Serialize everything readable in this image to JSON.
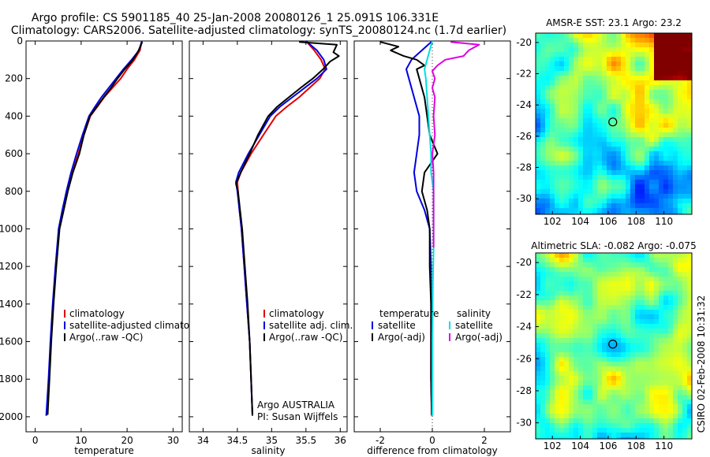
{
  "header": {
    "line1": "Argo profile: CS 5901185_40 25-Jan-2008 20080126_1 25.091S 106.331E",
    "line2": "Climatology: CARS2006. Satellite-adjusted climatology: synTS_20080124.nc (1.7d earlier)"
  },
  "side_text": "CSIRO 02-Feb-2008 10:31:32",
  "colors": {
    "climatology": "#e00000",
    "satellite": "#0000e0",
    "argo": "#000000",
    "salinity_sat": "#00e0e0",
    "salinity_argo": "#e000e0"
  },
  "chart_data": [
    {
      "type": "line",
      "id": "temperature",
      "xlabel": "temperature",
      "xlim": [
        -2,
        32
      ],
      "ylim": [
        2080,
        0
      ],
      "xticks": [
        "0",
        "10",
        "20",
        "30"
      ],
      "yticks": [
        "0",
        "200",
        "400",
        "600",
        "800",
        "1000",
        "1200",
        "1400",
        "1600",
        "1800",
        "2000"
      ],
      "legend": [
        "climatology",
        "satellite-adjusted climatology",
        "Argo(..raw -QC)"
      ],
      "series": [
        {
          "name": "climatology",
          "color": "#e00000",
          "points": [
            [
              23.2,
              0
            ],
            [
              22.8,
              50
            ],
            [
              21.6,
              100
            ],
            [
              20.0,
              150
            ],
            [
              18.6,
              200
            ],
            [
              16.8,
              250
            ],
            [
              15.0,
              300
            ],
            [
              13.5,
              350
            ],
            [
              12.0,
              400
            ],
            [
              10.6,
              500
            ],
            [
              9.4,
              600
            ],
            [
              8.1,
              700
            ],
            [
              7.0,
              800
            ],
            [
              6.0,
              900
            ],
            [
              5.2,
              1000
            ],
            [
              4.5,
              1200
            ],
            [
              3.9,
              1400
            ],
            [
              3.4,
              1600
            ],
            [
              3.0,
              1800
            ],
            [
              2.6,
              1990
            ]
          ]
        },
        {
          "name": "satellite-adjusted climatology",
          "color": "#0000e0",
          "points": [
            [
              23.2,
              0
            ],
            [
              22.6,
              50
            ],
            [
              21.0,
              100
            ],
            [
              19.2,
              150
            ],
            [
              17.6,
              200
            ],
            [
              16.0,
              250
            ],
            [
              14.4,
              300
            ],
            [
              13.0,
              350
            ],
            [
              11.7,
              400
            ],
            [
              10.3,
              500
            ],
            [
              9.0,
              600
            ],
            [
              7.8,
              700
            ],
            [
              6.8,
              800
            ],
            [
              5.9,
              900
            ],
            [
              5.1,
              1000
            ],
            [
              4.4,
              1200
            ],
            [
              3.8,
              1400
            ],
            [
              3.3,
              1600
            ],
            [
              2.9,
              1800
            ],
            [
              2.4,
              1995
            ]
          ]
        },
        {
          "name": "Argo(..raw -QC)",
          "color": "#000000",
          "points": [
            [
              23.3,
              5
            ],
            [
              22.5,
              50
            ],
            [
              21.3,
              100
            ],
            [
              19.5,
              150
            ],
            [
              17.9,
              200
            ],
            [
              16.5,
              250
            ],
            [
              14.9,
              300
            ],
            [
              13.4,
              350
            ],
            [
              11.9,
              400
            ],
            [
              10.6,
              500
            ],
            [
              9.6,
              600
            ],
            [
              8.2,
              700
            ],
            [
              7.1,
              800
            ],
            [
              6.2,
              900
            ],
            [
              5.3,
              1000
            ],
            [
              4.6,
              1200
            ],
            [
              4.0,
              1400
            ],
            [
              3.5,
              1600
            ],
            [
              3.1,
              1800
            ],
            [
              2.7,
              1990
            ]
          ]
        }
      ]
    },
    {
      "type": "line",
      "id": "salinity",
      "xlabel": "salinity",
      "xlim": [
        33.8,
        36.1
      ],
      "ylim": [
        2080,
        0
      ],
      "xticks": [
        "34",
        "34.5",
        "35",
        "35.5",
        "36"
      ],
      "legend": [
        "climatology",
        "satellite adj. clim.",
        "Argo(..raw -QC)"
      ],
      "annotations": [
        "Argo AUSTRALIA",
        "PI: Susan Wijffels"
      ],
      "series": [
        {
          "name": "climatology",
          "color": "#e00000",
          "points": [
            [
              35.5,
              0
            ],
            [
              35.62,
              50
            ],
            [
              35.72,
              100
            ],
            [
              35.78,
              150
            ],
            [
              35.7,
              200
            ],
            [
              35.55,
              250
            ],
            [
              35.4,
              300
            ],
            [
              35.22,
              350
            ],
            [
              35.06,
              400
            ],
            [
              34.88,
              500
            ],
            [
              34.7,
              600
            ],
            [
              34.55,
              700
            ],
            [
              34.5,
              750
            ],
            [
              34.51,
              800
            ],
            [
              34.53,
              900
            ],
            [
              34.56,
              1000
            ],
            [
              34.6,
              1200
            ],
            [
              34.64,
              1400
            ],
            [
              34.68,
              1600
            ],
            [
              34.7,
              1800
            ],
            [
              34.72,
              1990
            ]
          ]
        },
        {
          "name": "satellite adj. clim.",
          "color": "#0000e0",
          "points": [
            [
              35.5,
              0
            ],
            [
              35.66,
              50
            ],
            [
              35.76,
              100
            ],
            [
              35.8,
              150
            ],
            [
              35.66,
              200
            ],
            [
              35.48,
              250
            ],
            [
              35.3,
              300
            ],
            [
              35.12,
              350
            ],
            [
              34.98,
              400
            ],
            [
              34.82,
              500
            ],
            [
              34.66,
              600
            ],
            [
              34.52,
              700
            ],
            [
              34.48,
              750
            ],
            [
              34.5,
              800
            ],
            [
              34.53,
              900
            ],
            [
              34.56,
              1000
            ],
            [
              34.6,
              1200
            ],
            [
              34.64,
              1400
            ],
            [
              34.68,
              1600
            ],
            [
              34.7,
              1800
            ],
            [
              34.72,
              1995
            ]
          ]
        },
        {
          "name": "Argo(..raw -QC)",
          "color": "#000000",
          "points": [
            [
              35.4,
              5
            ],
            [
              35.95,
              20
            ],
            [
              35.9,
              60
            ],
            [
              35.98,
              80
            ],
            [
              35.85,
              110
            ],
            [
              35.75,
              150
            ],
            [
              35.6,
              200
            ],
            [
              35.42,
              250
            ],
            [
              35.25,
              300
            ],
            [
              35.08,
              350
            ],
            [
              34.95,
              400
            ],
            [
              34.8,
              500
            ],
            [
              34.68,
              600
            ],
            [
              34.55,
              700
            ],
            [
              34.48,
              760
            ],
            [
              34.51,
              800
            ],
            [
              34.54,
              900
            ],
            [
              34.57,
              1000
            ],
            [
              34.61,
              1200
            ],
            [
              34.65,
              1400
            ],
            [
              34.68,
              1600
            ],
            [
              34.7,
              1800
            ],
            [
              34.72,
              1990
            ]
          ]
        }
      ]
    },
    {
      "type": "line",
      "id": "difference",
      "xlabel": "difference from climatology",
      "xlim": [
        -3,
        3
      ],
      "ylim": [
        2080,
        0
      ],
      "xticks": [
        "-2",
        "0",
        "2"
      ],
      "legend": [
        "temperature",
        "satellite",
        "Argo(-adj)",
        "salinity",
        "satellite",
        "Argo(-adj)"
      ],
      "series": [
        {
          "name": "satellite",
          "group": "temperature",
          "color": "#0000e0",
          "points": [
            [
              0.0,
              0
            ],
            [
              -0.4,
              50
            ],
            [
              -0.8,
              100
            ],
            [
              -1.0,
              150
            ],
            [
              -0.9,
              200
            ],
            [
              -0.7,
              300
            ],
            [
              -0.5,
              400
            ],
            [
              -0.5,
              500
            ],
            [
              -0.6,
              600
            ],
            [
              -0.7,
              700
            ],
            [
              -0.6,
              800
            ],
            [
              -0.3,
              900
            ],
            [
              -0.1,
              1000
            ],
            [
              -0.05,
              1200
            ],
            [
              -0.05,
              1500
            ],
            [
              -0.05,
              1800
            ],
            [
              -0.02,
              1995
            ]
          ]
        },
        {
          "name": "Argo(-adj)",
          "group": "temperature",
          "color": "#000000",
          "points": [
            [
              -2.0,
              5
            ],
            [
              -1.3,
              30
            ],
            [
              -1.6,
              50
            ],
            [
              -1.1,
              80
            ],
            [
              -0.6,
              100
            ],
            [
              -0.3,
              130
            ],
            [
              -0.6,
              150
            ],
            [
              -0.5,
              200
            ],
            [
              -0.3,
              300
            ],
            [
              -0.2,
              400
            ],
            [
              -0.1,
              500
            ],
            [
              0.2,
              600
            ],
            [
              -0.3,
              700
            ],
            [
              -0.4,
              800
            ],
            [
              -0.2,
              900
            ],
            [
              -0.1,
              1000
            ],
            [
              -0.1,
              1200
            ],
            [
              -0.05,
              1400
            ],
            [
              -0.05,
              1800
            ],
            [
              -0.02,
              1990
            ]
          ]
        },
        {
          "name": "satellite",
          "group": "salinity",
          "color": "#00e0e0",
          "points": [
            [
              0.0,
              0
            ],
            [
              -0.1,
              50
            ],
            [
              -0.2,
              100
            ],
            [
              -0.3,
              150
            ],
            [
              -0.25,
              200
            ],
            [
              -0.2,
              300
            ],
            [
              -0.15,
              400
            ],
            [
              -0.1,
              500
            ],
            [
              -0.05,
              600
            ],
            [
              -0.05,
              700
            ],
            [
              0.05,
              800
            ],
            [
              0.05,
              1000
            ],
            [
              0.05,
              1100
            ],
            [
              0.02,
              1300
            ],
            [
              0.0,
              1600
            ],
            [
              0.0,
              1995
            ]
          ]
        },
        {
          "name": "Argo(-adj)",
          "group": "salinity",
          "color": "#e000e0",
          "points": [
            [
              0.7,
              5
            ],
            [
              1.8,
              20
            ],
            [
              1.4,
              50
            ],
            [
              1.2,
              80
            ],
            [
              0.5,
              100
            ],
            [
              0.2,
              130
            ],
            [
              0.0,
              160
            ],
            [
              0.1,
              200
            ],
            [
              0.0,
              250
            ],
            [
              0.1,
              300
            ],
            [
              0.05,
              400
            ],
            [
              0.1,
              500
            ],
            [
              0.0,
              600
            ],
            [
              0.05,
              700
            ],
            [
              0.05,
              800
            ],
            [
              0.05,
              1000
            ],
            [
              0.05,
              1100
            ]
          ]
        }
      ]
    },
    {
      "type": "heatmap",
      "id": "sst-map",
      "title": "AMSR-E SST: 23.1 Argo: 23.2",
      "xlim": [
        100.8,
        112.0
      ],
      "ylim": [
        -31.0,
        -19.4
      ],
      "xticks": [
        "102",
        "104",
        "106",
        "108",
        "110"
      ],
      "yticks": [
        "-20",
        "-22",
        "-24",
        "-26",
        "-28",
        "-30"
      ],
      "marker": [
        106.33,
        -25.09
      ],
      "trend": {
        "base": 0.45,
        "north": 0.35,
        "east": 0.1
      }
    },
    {
      "type": "heatmap",
      "id": "sla-map",
      "title": "Altimetric SLA: -0.082 Argo: -0.075",
      "xlim": [
        100.8,
        112.0
      ],
      "ylim": [
        -31.0,
        -19.4
      ],
      "xticks": [
        "102",
        "104",
        "106",
        "108",
        "110"
      ],
      "yticks": [
        "-20",
        "-22",
        "-24",
        "-26",
        "-28",
        "-30"
      ],
      "marker": [
        106.33,
        -25.09
      ],
      "trend": {
        "base": 0.48,
        "north": 0.05,
        "east": 0.0
      }
    }
  ]
}
